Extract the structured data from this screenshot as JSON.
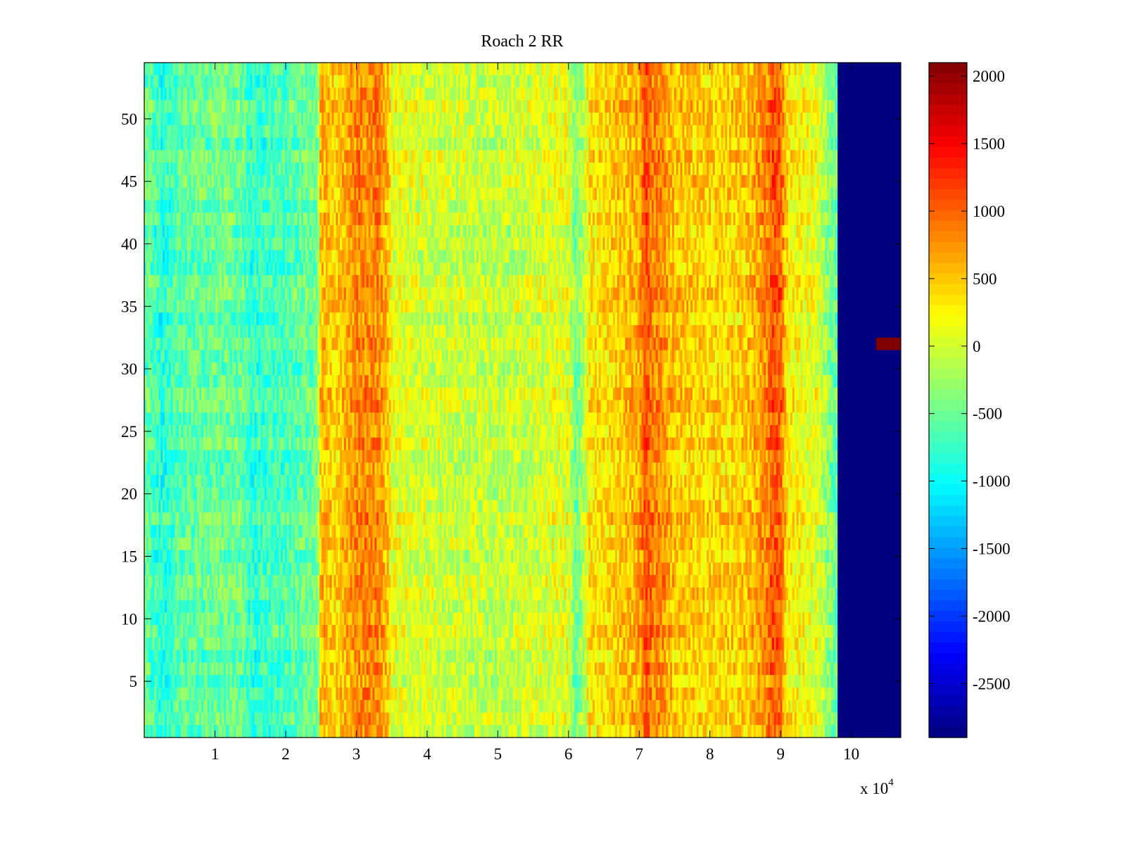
{
  "chart_data": {
    "type": "heatmap",
    "title": "Roach 2 RR",
    "xlabel": "",
    "ylabel": "",
    "x_exponent_label": "x 10",
    "x_exponent_power": "4",
    "x_range": [
      0,
      10.7
    ],
    "y_range": [
      0.5,
      54.5
    ],
    "x_ticks": [
      1,
      2,
      3,
      4,
      5,
      6,
      7,
      8,
      9,
      10
    ],
    "x_tick_labels": [
      "1",
      "2",
      "3",
      "4",
      "5",
      "6",
      "7",
      "8",
      "9",
      "10"
    ],
    "y_ticks": [
      5,
      10,
      15,
      20,
      25,
      30,
      35,
      40,
      45,
      50
    ],
    "y_tick_labels": [
      "5",
      "10",
      "15",
      "20",
      "25",
      "30",
      "35",
      "40",
      "45",
      "50"
    ],
    "rows": 54,
    "colormap": "jet",
    "colorbar": {
      "range": [
        -2900,
        2100
      ],
      "ticks": [
        2000,
        1500,
        1000,
        500,
        0,
        -500,
        -1000,
        -1500,
        -2000,
        -2500
      ],
      "tick_labels": [
        "2000",
        "1500",
        "1000",
        "500",
        "0",
        "-500",
        "-1000",
        "-1500",
        "-2000",
        "-2500"
      ]
    },
    "column_profile": {
      "x": [
        0.0,
        0.25,
        0.5,
        1.0,
        1.4,
        1.5,
        2.0,
        2.45,
        2.5,
        2.7,
        3.0,
        3.3,
        3.45,
        3.5,
        4.0,
        4.5,
        5.0,
        5.5,
        6.0,
        6.1,
        6.2,
        6.3,
        6.6,
        7.0,
        7.1,
        7.2,
        7.3,
        7.5,
        8.0,
        8.5,
        8.8,
        8.9,
        9.0,
        9.1,
        9.5,
        9.8
      ],
      "values": [
        -500,
        -850,
        -600,
        -500,
        -550,
        -800,
        -650,
        -450,
        600,
        400,
        800,
        800,
        500,
        100,
        0,
        -50,
        -100,
        0,
        100,
        -500,
        -200,
        300,
        400,
        650,
        1100,
        800,
        800,
        500,
        400,
        450,
        800,
        1100,
        1000,
        300,
        100,
        -600
      ]
    },
    "segments": [
      {
        "name": "low-activity",
        "x_start": 0.0,
        "x_end": 2.48,
        "mean_value": -600
      },
      {
        "name": "high-band-1",
        "x_start": 2.48,
        "x_end": 3.45,
        "mean_value": 700
      },
      {
        "name": "mid-region",
        "x_start": 3.45,
        "x_end": 6.2,
        "mean_value": 0
      },
      {
        "name": "high-band-2",
        "x_start": 6.2,
        "x_end": 9.2,
        "mean_value": 550
      },
      {
        "name": "taper",
        "x_start": 9.2,
        "x_end": 9.8,
        "mean_value": -200
      },
      {
        "name": "no-data",
        "x_start": 9.8,
        "x_end": 10.7,
        "mean_value": -2900
      }
    ],
    "anomalies": [
      {
        "name": "row-32-spike",
        "row": 32,
        "x_start": 10.35,
        "x_end": 10.7,
        "value": 2100
      }
    ]
  }
}
